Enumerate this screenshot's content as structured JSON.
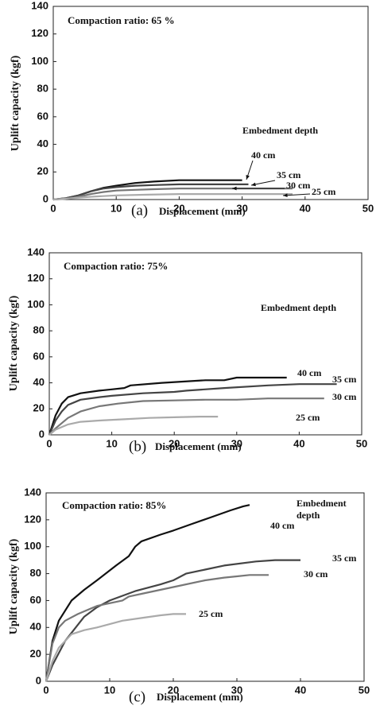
{
  "chart_data": [
    {
      "type": "line",
      "title": "Compaction ratio: 65 %",
      "annotation": "Embedment depth",
      "panel": "(a)",
      "x_label": "Displacement (mm)",
      "y_label": "Uplift capacity (kgf)",
      "xlim": [
        0,
        50
      ],
      "xticks": [
        0,
        10,
        20,
        30,
        40,
        50
      ],
      "ylim": [
        0,
        140
      ],
      "yticks": [
        0,
        20,
        40,
        60,
        80,
        100,
        120,
        140
      ],
      "series": [
        {
          "name": "40 cm",
          "color": "#111111",
          "x": [
            0,
            2,
            4,
            6,
            8,
            10,
            13,
            16,
            20,
            25,
            30
          ],
          "values": [
            0,
            1,
            3,
            6,
            8.5,
            10,
            12,
            13,
            14,
            14,
            14
          ]
        },
        {
          "name": "35 cm",
          "color": "#444444",
          "x": [
            0,
            2,
            4,
            6,
            8,
            10,
            13,
            16,
            20,
            25,
            31
          ],
          "values": [
            0,
            1,
            3,
            6,
            8,
            9,
            10,
            10.5,
            11,
            11,
            11
          ]
        },
        {
          "name": "30 cm",
          "color": "#777777",
          "x": [
            0,
            2,
            4,
            6,
            8,
            10,
            13,
            16,
            20,
            28,
            38
          ],
          "values": [
            0,
            0.5,
            2,
            4,
            5.5,
            6.5,
            7,
            7.5,
            8,
            8,
            8
          ]
        },
        {
          "name": "25 cm",
          "color": "#aaaaaa",
          "x": [
            0,
            3,
            6,
            10,
            15,
            20,
            28,
            38
          ],
          "values": [
            0,
            1,
            2,
            3,
            3.5,
            4,
            4,
            4
          ]
        }
      ]
    },
    {
      "type": "line",
      "title": "Compaction ratio: 75%",
      "annotation": "Embedment depth",
      "panel": "(b)",
      "x_label": "Displacement (mm)",
      "y_label": "Uplift capacity (kgf)",
      "xlim": [
        0,
        50
      ],
      "xticks": [
        0,
        10,
        20,
        30,
        40,
        50
      ],
      "ylim": [
        0,
        140
      ],
      "yticks": [
        0,
        20,
        40,
        60,
        80,
        100,
        120,
        140
      ],
      "series": [
        {
          "name": "40 cm",
          "color": "#111111",
          "x": [
            0,
            1,
            2,
            3,
            5,
            8,
            10,
            12,
            13,
            18,
            25,
            28,
            30,
            35,
            38
          ],
          "values": [
            0,
            15,
            24,
            29,
            32,
            34,
            35,
            36,
            38,
            40,
            42,
            42,
            44,
            44,
            44
          ]
        },
        {
          "name": "35 cm",
          "color": "#444444",
          "x": [
            0,
            1,
            2,
            3,
            5,
            8,
            10,
            15,
            20,
            22,
            28,
            35,
            40,
            46
          ],
          "values": [
            0,
            11,
            18,
            23,
            27,
            29,
            30,
            32,
            33,
            34,
            36,
            38,
            39,
            39
          ]
        },
        {
          "name": "30 cm",
          "color": "#777777",
          "x": [
            0,
            1,
            3,
            5,
            8,
            11,
            15,
            20,
            25,
            30,
            35,
            40,
            44
          ],
          "values": [
            0,
            5,
            13,
            18,
            22,
            24,
            26,
            26.5,
            27,
            27,
            28,
            28,
            28
          ]
        },
        {
          "name": "25 cm",
          "color": "#aaaaaa",
          "x": [
            0,
            1,
            3,
            5,
            8,
            12,
            16,
            20,
            24,
            27
          ],
          "values": [
            0,
            4,
            8,
            10,
            11,
            12,
            13,
            13.5,
            14,
            14
          ]
        }
      ]
    },
    {
      "type": "line",
      "title": "Compaction ratio: 85%",
      "annotation": [
        "Embedment",
        "depth"
      ],
      "panel": "(c)",
      "x_label": "Displacement (mm)",
      "y_label": "Uplift capacity  (kgf)",
      "xlim": [
        0,
        50
      ],
      "xticks": [
        0,
        10,
        20,
        30,
        40,
        50
      ],
      "ylim": [
        0,
        140
      ],
      "yticks": [
        0,
        20,
        40,
        60,
        80,
        100,
        120,
        140
      ],
      "series": [
        {
          "name": "40 cm",
          "color": "#111111",
          "x": [
            0,
            1,
            2,
            4,
            6,
            8,
            11,
            13,
            14,
            15,
            18,
            20,
            23,
            26,
            29,
            31,
            32
          ],
          "values": [
            0,
            30,
            45,
            60,
            68,
            75,
            86,
            93,
            100,
            104,
            109,
            112,
            117,
            122,
            127,
            130,
            131
          ]
        },
        {
          "name": "35 cm",
          "color": "#444444",
          "x": [
            0,
            1,
            3,
            6,
            8,
            10,
            14,
            18,
            20,
            22,
            25,
            28,
            33,
            36,
            40
          ],
          "values": [
            0,
            12,
            30,
            48,
            55,
            60,
            67,
            72,
            75,
            80,
            83,
            86,
            89,
            90,
            90
          ]
        },
        {
          "name": "30 cm",
          "color": "#777777",
          "x": [
            0,
            1,
            2,
            3,
            5,
            8,
            12,
            13,
            15,
            20,
            25,
            28,
            30,
            32,
            35
          ],
          "values": [
            0,
            28,
            40,
            45,
            50,
            56,
            60,
            63,
            65,
            70,
            75,
            77,
            78,
            79,
            79
          ]
        },
        {
          "name": "25 cm",
          "color": "#aaaaaa",
          "x": [
            0,
            1,
            2,
            4,
            6,
            8,
            12,
            15,
            18,
            20,
            22
          ],
          "values": [
            0,
            15,
            25,
            35,
            38,
            40,
            45,
            47,
            49,
            50,
            50
          ]
        }
      ]
    }
  ]
}
